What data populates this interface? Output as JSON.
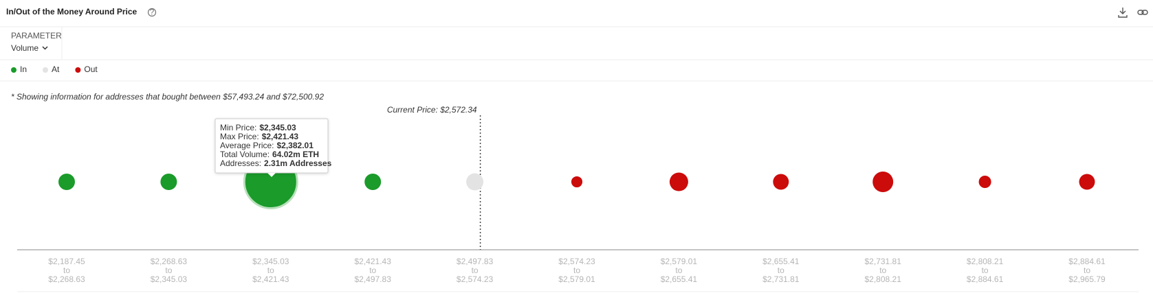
{
  "header": {
    "title": "In/Out of the Money Around Price",
    "parameter_label": "PARAMETER",
    "parameter_value": "Volume"
  },
  "chart_data": {
    "type": "bubble",
    "note": "* Showing information for addresses that bought between $57,493.24 and $72,500.92",
    "current_price": {
      "value": 2572.34,
      "label": "Current Price: $2,572.34"
    },
    "range_separator": "to",
    "bin_edges": [
      {
        "value": 2187.45,
        "label": "$2,187.45"
      },
      {
        "value": 2268.63,
        "label": "$2,268.63"
      },
      {
        "value": 2345.03,
        "label": "$2,345.03"
      },
      {
        "value": 2421.43,
        "label": "$2,421.43"
      },
      {
        "value": 2497.83,
        "label": "$2,497.83"
      },
      {
        "value": 2574.23,
        "label": "$2,574.23"
      },
      {
        "value": 2579.01,
        "label": "$2,579.01"
      },
      {
        "value": 2655.41,
        "label": "$2,655.41"
      },
      {
        "value": 2731.81,
        "label": "$2,731.81"
      },
      {
        "value": 2808.21,
        "label": "$2,808.21"
      },
      {
        "value": 2884.61,
        "label": "$2,884.61"
      },
      {
        "value": 2965.79,
        "label": "$2,965.79"
      }
    ],
    "series": [
      {
        "name": "In",
        "color": "#1a9b2a",
        "values": [
          6.2,
          6.2,
          64.02,
          6.2,
          null,
          null,
          null,
          null,
          null,
          null,
          null
        ]
      },
      {
        "name": "At",
        "color": "#e3e3e3",
        "values": [
          null,
          null,
          null,
          null,
          6.75,
          null,
          null,
          null,
          null,
          null,
          null
        ]
      },
      {
        "name": "Out",
        "color": "#cc0b0b",
        "values": [
          null,
          null,
          null,
          null,
          null,
          2.8,
          7.9,
          5.7,
          9.7,
          3.5,
          5.7
        ]
      }
    ],
    "tooltip": {
      "rows": [
        {
          "label": "Min Price:",
          "value": "$2,345.03"
        },
        {
          "label": "Max Price:",
          "value": "$2,421.43"
        },
        {
          "label": "Average Price:",
          "value": "$2,382.01"
        },
        {
          "label": "Total Volume:",
          "value": "64.02m ETH"
        },
        {
          "label": "Addresses:",
          "value": "2.31m Addresses"
        }
      ]
    }
  }
}
